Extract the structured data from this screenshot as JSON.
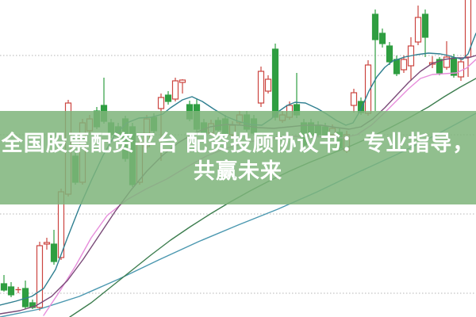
{
  "banner": {
    "line1": "全国股票配资平台 配资投顾协议书：专业指导，",
    "line2": "共赢未来",
    "bg": "rgba(126,180,122,0.85)",
    "text_color": "#ffffff"
  },
  "chart_data": {
    "type": "candlestick",
    "title": "",
    "xlabel": "",
    "ylabel": "",
    "legend": "none",
    "grid": "dotted-horizontal",
    "y_axis": {
      "ylim": [
        9.4,
        17.4
      ],
      "gridline_prices": [
        10,
        12,
        14,
        16
      ]
    },
    "x_start": 5,
    "x_step": 9,
    "colors": {
      "up": "#cc4540",
      "down": "#2f9e41",
      "grid": "#b5b5b5",
      "ma_fast": "#2f7f90",
      "ma_mid": "#7a4a78",
      "ma20": "#e78ddb",
      "ma30": "#3c7d4e",
      "ma60": "#4b98b0"
    },
    "candles": [
      {
        "o": 10.24,
        "c": 10.08,
        "h": 10.46,
        "l": 10.04
      },
      {
        "o": 10.16,
        "c": 9.96,
        "h": 10.28,
        "l": 9.9
      },
      {
        "o": 10.07,
        "c": 10.09,
        "h": 10.16,
        "l": 10.0
      },
      {
        "o": 10.12,
        "c": 9.66,
        "h": 10.32,
        "l": 9.6
      },
      {
        "o": 9.76,
        "c": 9.64,
        "h": 9.84,
        "l": 9.6
      },
      {
        "o": 9.64,
        "c": 11.2,
        "h": 11.3,
        "l": 9.56
      },
      {
        "o": 11.24,
        "c": 11.28,
        "h": 11.4,
        "l": 11.1
      },
      {
        "o": 11.24,
        "c": 10.8,
        "h": 11.6,
        "l": 10.72
      },
      {
        "o": 10.9,
        "c": 12.56,
        "h": 12.64,
        "l": 10.84
      },
      {
        "o": 12.5,
        "c": 14.8,
        "h": 14.88,
        "l": 12.44
      },
      {
        "o": 13.46,
        "c": 12.8,
        "h": 13.56,
        "l": 12.74
      },
      {
        "o": 12.8,
        "c": 14.3,
        "h": 14.4,
        "l": 12.74
      },
      {
        "o": 14.1,
        "c": 14.4,
        "h": 14.5,
        "l": 14.04
      },
      {
        "o": 14.6,
        "c": 14.2,
        "h": 14.7,
        "l": 14.14
      },
      {
        "o": 14.74,
        "c": 14.34,
        "h": 15.44,
        "l": 14.28
      },
      {
        "o": 14.3,
        "c": 14.0,
        "h": 14.4,
        "l": 13.92
      },
      {
        "o": 14.2,
        "c": 13.96,
        "h": 14.3,
        "l": 13.88
      },
      {
        "o": 14.4,
        "c": 13.4,
        "h": 14.48,
        "l": 13.32
      },
      {
        "o": 14.2,
        "c": 12.74,
        "h": 14.3,
        "l": 12.68
      },
      {
        "o": 12.8,
        "c": 13.8,
        "h": 13.88,
        "l": 12.74
      },
      {
        "o": 13.7,
        "c": 14.4,
        "h": 14.5,
        "l": 13.64
      },
      {
        "o": 14.44,
        "c": 14.1,
        "h": 14.54,
        "l": 14.04
      },
      {
        "o": 14.66,
        "c": 14.94,
        "h": 15.04,
        "l": 13.34
      },
      {
        "o": 15.0,
        "c": 14.84,
        "h": 15.1,
        "l": 14.76
      },
      {
        "o": 14.9,
        "c": 15.36,
        "h": 15.44,
        "l": 14.84
      },
      {
        "o": 15.32,
        "c": 15.38,
        "h": 15.4,
        "l": 15.04
      },
      {
        "o": 14.76,
        "c": 14.4,
        "h": 14.86,
        "l": 14.34
      },
      {
        "o": 14.76,
        "c": 14.14,
        "h": 14.9,
        "l": 14.08
      },
      {
        "o": 14.3,
        "c": 14.04,
        "h": 14.4,
        "l": 13.98
      },
      {
        "o": 14.04,
        "c": 14.28,
        "h": 14.38,
        "l": 13.98
      },
      {
        "o": 14.36,
        "c": 14.12,
        "h": 14.44,
        "l": 14.06
      },
      {
        "o": 14.4,
        "c": 14.0,
        "h": 14.5,
        "l": 13.94
      },
      {
        "o": 14.0,
        "c": 14.24,
        "h": 14.34,
        "l": 13.94
      },
      {
        "o": 14.3,
        "c": 14.5,
        "h": 14.6,
        "l": 14.24
      },
      {
        "o": 14.5,
        "c": 14.14,
        "h": 14.6,
        "l": 14.08
      },
      {
        "o": 14.4,
        "c": 14.04,
        "h": 14.5,
        "l": 13.98
      },
      {
        "o": 14.8,
        "c": 15.6,
        "h": 15.72,
        "l": 14.7
      },
      {
        "o": 15.1,
        "c": 15.4,
        "h": 15.5,
        "l": 15.04
      },
      {
        "o": 16.16,
        "c": 14.44,
        "h": 16.3,
        "l": 14.36
      },
      {
        "o": 14.36,
        "c": 14.5,
        "h": 14.6,
        "l": 14.3
      },
      {
        "o": 14.44,
        "c": 14.74,
        "h": 14.84,
        "l": 14.38
      },
      {
        "o": 14.76,
        "c": 14.5,
        "h": 15.56,
        "l": 14.42
      },
      {
        "o": 14.3,
        "c": 13.74,
        "h": 14.4,
        "l": 13.68
      },
      {
        "o": 14.3,
        "c": 13.96,
        "h": 14.4,
        "l": 13.9
      },
      {
        "o": 14.24,
        "c": 14.0,
        "h": 14.34,
        "l": 13.94
      },
      {
        "o": 14.2,
        "c": 14.0,
        "h": 14.3,
        "l": 13.92
      },
      {
        "o": 14.0,
        "c": 14.16,
        "h": 14.26,
        "l": 13.94
      },
      {
        "o": 14.06,
        "c": 13.66,
        "h": 14.16,
        "l": 13.6
      },
      {
        "o": 13.6,
        "c": 14.0,
        "h": 14.1,
        "l": 13.54
      },
      {
        "o": 14.74,
        "c": 15.06,
        "h": 15.16,
        "l": 14.56
      },
      {
        "o": 14.84,
        "c": 14.56,
        "h": 14.94,
        "l": 14.5
      },
      {
        "o": 14.54,
        "c": 15.76,
        "h": 15.88,
        "l": 14.48
      },
      {
        "o": 17.04,
        "c": 16.4,
        "h": 17.16,
        "l": 14.6
      },
      {
        "o": 16.56,
        "c": 16.3,
        "h": 16.68,
        "l": 16.2
      },
      {
        "o": 16.24,
        "c": 15.84,
        "h": 16.34,
        "l": 15.76
      },
      {
        "o": 15.9,
        "c": 15.54,
        "h": 16.0,
        "l": 15.48
      },
      {
        "o": 15.64,
        "c": 15.9,
        "h": 16.0,
        "l": 15.56
      },
      {
        "o": 15.74,
        "c": 16.24,
        "h": 16.46,
        "l": 15.36
      },
      {
        "o": 16.34,
        "c": 16.96,
        "h": 17.26,
        "l": 16.26
      },
      {
        "o": 17.04,
        "c": 16.46,
        "h": 17.16,
        "l": 15.96
      },
      {
        "o": 15.78,
        "c": 15.82,
        "h": 15.98,
        "l": 15.68
      },
      {
        "o": 15.9,
        "c": 15.56,
        "h": 15.96,
        "l": 15.5
      },
      {
        "o": 15.7,
        "c": 15.96,
        "h": 16.36,
        "l": 15.64
      },
      {
        "o": 15.94,
        "c": 15.5,
        "h": 16.04,
        "l": 15.44
      },
      {
        "o": 15.46,
        "c": 15.84,
        "h": 15.94,
        "l": 15.36
      },
      {
        "o": 15.96,
        "c": 17.5,
        "h": 17.5,
        "l": 15.46
      }
    ],
    "ma_series": [
      {
        "name": "ma60-slow-blue",
        "color_key": "ma60",
        "points": [
          [
            0,
            9.4
          ],
          [
            50,
            9.6
          ],
          [
            100,
            9.92
          ],
          [
            150,
            10.36
          ],
          [
            200,
            10.84
          ],
          [
            250,
            11.3
          ],
          [
            300,
            11.72
          ],
          [
            350,
            12.12
          ],
          [
            400,
            12.56
          ],
          [
            450,
            13.04
          ],
          [
            500,
            13.5
          ],
          [
            550,
            14.0
          ],
          [
            600,
            14.54
          ]
        ]
      },
      {
        "name": "ma30-green",
        "color_key": "ma30",
        "points": [
          [
            88,
            9.4
          ],
          [
            115,
            9.76
          ],
          [
            140,
            10.16
          ],
          [
            165,
            10.56
          ],
          [
            190,
            10.96
          ],
          [
            215,
            11.34
          ],
          [
            240,
            11.68
          ],
          [
            265,
            12.0
          ],
          [
            290,
            12.3
          ],
          [
            315,
            12.58
          ],
          [
            340,
            12.84
          ],
          [
            365,
            13.08
          ],
          [
            390,
            13.3
          ],
          [
            415,
            13.5
          ],
          [
            440,
            13.7
          ],
          [
            465,
            13.92
          ],
          [
            490,
            14.16
          ],
          [
            515,
            14.42
          ],
          [
            540,
            14.7
          ],
          [
            560,
            14.96
          ],
          [
            580,
            15.2
          ],
          [
            600,
            15.42
          ]
        ]
      },
      {
        "name": "ma20-pink",
        "color_key": "ma20",
        "points": [
          [
            55,
            9.44
          ],
          [
            75,
            10.04
          ],
          [
            95,
            10.68
          ],
          [
            115,
            11.4
          ],
          [
            135,
            11.96
          ],
          [
            160,
            12.36
          ],
          [
            185,
            12.64
          ],
          [
            210,
            12.88
          ],
          [
            235,
            13.18
          ],
          [
            260,
            13.46
          ],
          [
            285,
            13.66
          ],
          [
            310,
            13.8
          ],
          [
            335,
            13.9
          ],
          [
            360,
            13.96
          ],
          [
            385,
            13.96
          ],
          [
            410,
            13.94
          ],
          [
            430,
            13.92
          ],
          [
            450,
            14.0
          ],
          [
            468,
            14.24
          ],
          [
            485,
            14.56
          ],
          [
            500,
            14.86
          ],
          [
            515,
            15.16
          ],
          [
            530,
            15.42
          ],
          [
            545,
            15.52
          ],
          [
            560,
            15.54
          ],
          [
            575,
            15.56
          ],
          [
            588,
            15.68
          ],
          [
            600,
            15.9
          ]
        ]
      },
      {
        "name": "ma10-purple",
        "color_key": "ma_mid",
        "points": [
          [
            0,
            9.48
          ],
          [
            25,
            9.56
          ],
          [
            45,
            9.68
          ],
          [
            65,
            9.92
          ],
          [
            85,
            10.32
          ],
          [
            105,
            10.86
          ],
          [
            125,
            11.46
          ],
          [
            145,
            12.06
          ],
          [
            165,
            12.6
          ],
          [
            185,
            13.08
          ],
          [
            205,
            13.48
          ],
          [
            225,
            13.8
          ],
          [
            245,
            14.04
          ],
          [
            265,
            14.2
          ],
          [
            285,
            14.26
          ],
          [
            305,
            14.24
          ],
          [
            325,
            14.18
          ],
          [
            345,
            14.16
          ],
          [
            365,
            14.2
          ],
          [
            385,
            14.24
          ],
          [
            405,
            14.24
          ],
          [
            425,
            14.18
          ],
          [
            440,
            14.14
          ],
          [
            455,
            14.2
          ],
          [
            470,
            14.4
          ],
          [
            485,
            14.68
          ],
          [
            500,
            15.0
          ],
          [
            515,
            15.32
          ],
          [
            530,
            15.6
          ],
          [
            545,
            15.8
          ],
          [
            560,
            15.9
          ],
          [
            575,
            15.94
          ],
          [
            590,
            15.94
          ],
          [
            600,
            16.0
          ]
        ]
      },
      {
        "name": "ma5-teal",
        "color_key": "ma_fast",
        "points": [
          [
            0,
            9.7
          ],
          [
            20,
            9.8
          ],
          [
            40,
            9.92
          ],
          [
            55,
            10.12
          ],
          [
            70,
            10.6
          ],
          [
            85,
            11.4
          ],
          [
            100,
            12.16
          ],
          [
            115,
            12.84
          ],
          [
            130,
            13.48
          ],
          [
            145,
            14.0
          ],
          [
            160,
            14.3
          ],
          [
            175,
            14.42
          ],
          [
            190,
            14.44
          ],
          [
            205,
            14.52
          ],
          [
            215,
            14.68
          ],
          [
            230,
            14.88
          ],
          [
            242,
            14.96
          ],
          [
            255,
            14.84
          ],
          [
            270,
            14.64
          ],
          [
            285,
            14.46
          ],
          [
            300,
            14.34
          ],
          [
            315,
            14.26
          ],
          [
            330,
            14.24
          ],
          [
            342,
            14.4
          ],
          [
            352,
            14.6
          ],
          [
            362,
            14.74
          ],
          [
            372,
            14.82
          ],
          [
            385,
            14.8
          ],
          [
            400,
            14.66
          ],
          [
            412,
            14.52
          ],
          [
            424,
            14.36
          ],
          [
            436,
            14.24
          ],
          [
            445,
            14.3
          ],
          [
            455,
            14.64
          ],
          [
            465,
            15.1
          ],
          [
            475,
            15.46
          ],
          [
            485,
            15.7
          ],
          [
            495,
            15.86
          ],
          [
            510,
            15.96
          ],
          [
            525,
            16.02
          ],
          [
            540,
            16.06
          ],
          [
            555,
            16.04
          ],
          [
            565,
            16.0
          ],
          [
            575,
            15.94
          ],
          [
            583,
            15.9
          ],
          [
            590,
            16.04
          ],
          [
            596,
            16.36
          ],
          [
            600,
            16.56
          ]
        ]
      }
    ]
  }
}
